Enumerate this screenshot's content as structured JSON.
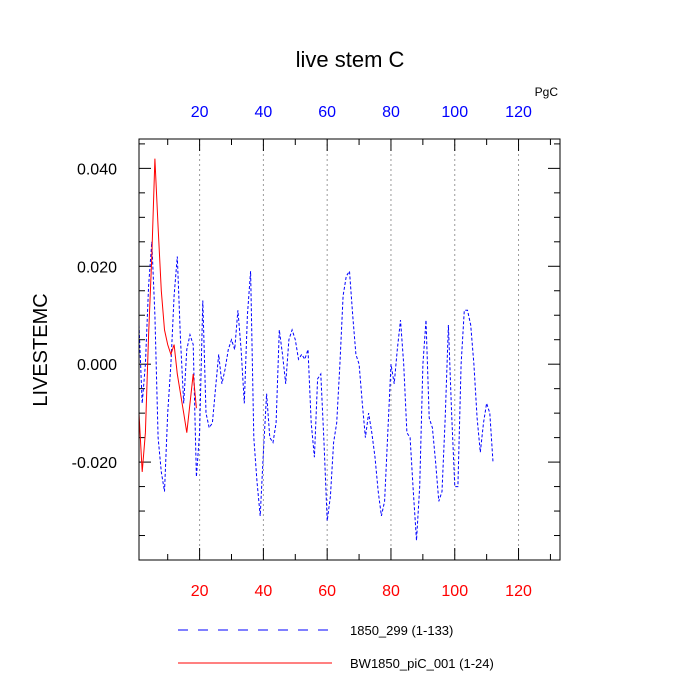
{
  "chart_data": {
    "type": "line",
    "title": "live stem C",
    "ylabel": "LIVESTEMC",
    "units": "PgC",
    "xlim": [
      1,
      133
    ],
    "ylim": [
      -0.04,
      0.046
    ],
    "x_ticks": [
      20,
      40,
      60,
      80,
      100,
      120
    ],
    "x_minor_ticks": [
      10,
      30,
      50,
      70,
      90,
      110,
      130
    ],
    "y_ticks": [
      -0.02,
      0.0,
      0.02,
      0.04
    ],
    "y_tick_labels": [
      "-0.020",
      "0.000",
      "0.020",
      "0.040"
    ],
    "y_minor_ticks": [
      -0.035,
      -0.03,
      -0.025,
      -0.015,
      -0.01,
      -0.005,
      0.005,
      0.01,
      0.015,
      0.025,
      0.03,
      0.035,
      0.045
    ],
    "grid": "vertical dotted at major x ticks",
    "colors": {
      "series1": "#0000ff",
      "series2": "#ff0000",
      "top_ticks": "#0000ff",
      "bottom_ticks": "#ff0000"
    },
    "series": [
      {
        "name": "1850_299 (1-133)",
        "style": "dashed",
        "color": "#0000ff",
        "x_start": 1,
        "values": [
          0.008,
          -0.008,
          0.0,
          0.016,
          0.025,
          0.01,
          -0.015,
          -0.022,
          -0.026,
          -0.01,
          0.0,
          0.014,
          0.022,
          0.005,
          -0.008,
          0.003,
          0.006,
          0.004,
          -0.023,
          -0.014,
          0.013,
          -0.01,
          -0.013,
          -0.012,
          -0.005,
          0.002,
          -0.004,
          -0.001,
          0.003,
          0.005,
          0.003,
          0.011,
          0.003,
          -0.008,
          0.01,
          0.019,
          -0.015,
          -0.024,
          -0.031,
          -0.018,
          -0.006,
          -0.015,
          -0.016,
          -0.012,
          0.007,
          0.002,
          -0.004,
          0.005,
          0.007,
          0.005,
          0.001,
          0.002,
          0.001,
          0.003,
          -0.012,
          -0.019,
          -0.003,
          -0.002,
          -0.016,
          -0.032,
          -0.027,
          -0.016,
          -0.012,
          0.0,
          0.014,
          0.018,
          0.019,
          0.01,
          0.002,
          0.0,
          -0.008,
          -0.015,
          -0.01,
          -0.014,
          -0.019,
          -0.026,
          -0.031,
          -0.028,
          -0.014,
          0.0,
          -0.004,
          0.003,
          0.009,
          0.0,
          -0.014,
          -0.015,
          -0.026,
          -0.036,
          -0.025,
          0.0,
          0.009,
          -0.011,
          -0.013,
          -0.02,
          -0.028,
          -0.026,
          -0.011,
          0.008,
          -0.01,
          -0.025,
          -0.025,
          0.0,
          0.011,
          0.011,
          0.008,
          0.0,
          -0.011,
          -0.018,
          -0.012,
          -0.008,
          -0.01,
          -0.02
        ]
      },
      {
        "name": "BW1850_piC_001 (1-24)",
        "style": "solid",
        "color": "#ff0000",
        "x_start": 1,
        "values": [
          -0.01,
          -0.022,
          -0.014,
          0.006,
          0.022,
          0.042,
          0.028,
          0.015,
          0.007,
          0.004,
          0.002,
          0.004,
          -0.002,
          -0.006,
          -0.01,
          -0.014,
          -0.008,
          -0.002,
          -0.009
        ]
      }
    ]
  }
}
